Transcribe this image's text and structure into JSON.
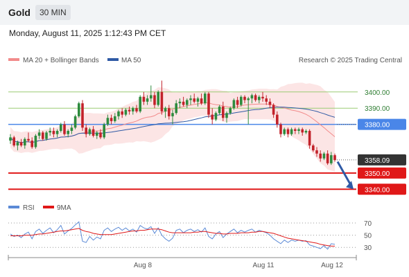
{
  "header": {
    "title": "Gold",
    "timeframe": "30 MIN"
  },
  "datetime": "Monday, August 11, 2025 1:12:43 PM CET",
  "credit": "Research © 2025 Trading Central",
  "colors": {
    "up": "#2e8b3e",
    "down": "#c2222a",
    "bb_band": "#fbdcdc",
    "ma20": "#f28b8b",
    "ma50": "#2f5aa5",
    "resistance": "#9acb73",
    "pivot": "#4a86e8",
    "support": "#e01818",
    "price_tag": "#333333",
    "arrow": "#2f5aa5",
    "rsi": "#5b8ad6",
    "rsi_ma": "#e01818"
  },
  "chart_data": [
    {
      "type": "candlestick",
      "title": "Gold",
      "timeframe": "30 MIN",
      "legend": [
        {
          "name": "MA 20 + Bollinger Bands",
          "color": "#f28b8b"
        },
        {
          "name": "MA 50",
          "color": "#2f5aa5"
        }
      ],
      "legend_position": "top-left",
      "x_tick_labels": [
        "Aug 8",
        "Aug 11",
        "Aug 12"
      ],
      "ylim": [
        3335,
        3414
      ],
      "levels": [
        {
          "label": "3400.00",
          "value": 3400,
          "kind": "resistance"
        },
        {
          "label": "3390.00",
          "value": 3390,
          "kind": "resistance"
        },
        {
          "label": "3380.00",
          "value": 3380,
          "kind": "pivot"
        },
        {
          "label": "3350.00",
          "value": 3350,
          "kind": "support"
        },
        {
          "label": "3340.00",
          "value": 3340,
          "kind": "support"
        }
      ],
      "last_price": {
        "label": "3358.09",
        "value": 3358.09
      },
      "forecast_arrow": {
        "from": 3357,
        "to": 3340
      },
      "candles": [
        [
          3370,
          3374,
          3368,
          3372
        ],
        [
          3372,
          3373,
          3366,
          3367
        ],
        [
          3367,
          3370,
          3364,
          3369
        ],
        [
          3369,
          3371,
          3366,
          3367
        ],
        [
          3367,
          3372,
          3365,
          3371
        ],
        [
          3371,
          3375,
          3369,
          3370
        ],
        [
          3370,
          3372,
          3365,
          3366
        ],
        [
          3366,
          3374,
          3365,
          3373
        ],
        [
          3373,
          3377,
          3371,
          3375
        ],
        [
          3375,
          3376,
          3370,
          3371
        ],
        [
          3371,
          3376,
          3370,
          3375
        ],
        [
          3375,
          3378,
          3373,
          3376
        ],
        [
          3376,
          3378,
          3372,
          3374
        ],
        [
          3374,
          3377,
          3372,
          3376
        ],
        [
          3376,
          3381,
          3375,
          3380
        ],
        [
          3380,
          3382,
          3373,
          3374
        ],
        [
          3374,
          3377,
          3372,
          3376
        ],
        [
          3376,
          3380,
          3374,
          3378
        ],
        [
          3378,
          3386,
          3377,
          3385
        ],
        [
          3385,
          3394,
          3384,
          3393
        ],
        [
          3393,
          3395,
          3376,
          3378
        ],
        [
          3378,
          3380,
          3372,
          3374
        ],
        [
          3374,
          3378,
          3373,
          3377
        ],
        [
          3377,
          3379,
          3372,
          3373
        ],
        [
          3373,
          3376,
          3371,
          3375
        ],
        [
          3375,
          3377,
          3371,
          3372
        ],
        [
          3372,
          3381,
          3371,
          3380
        ],
        [
          3380,
          3386,
          3379,
          3384
        ],
        [
          3384,
          3386,
          3380,
          3382
        ],
        [
          3382,
          3387,
          3381,
          3385
        ],
        [
          3385,
          3389,
          3383,
          3388
        ],
        [
          3388,
          3390,
          3384,
          3386
        ],
        [
          3386,
          3390,
          3385,
          3389
        ],
        [
          3389,
          3391,
          3386,
          3388
        ],
        [
          3388,
          3391,
          3386,
          3390
        ],
        [
          3390,
          3392,
          3387,
          3388
        ],
        [
          3388,
          3398,
          3387,
          3397
        ],
        [
          3397,
          3400,
          3392,
          3394
        ],
        [
          3394,
          3398,
          3392,
          3396
        ],
        [
          3396,
          3404,
          3394,
          3398
        ],
        [
          3398,
          3400,
          3390,
          3392
        ],
        [
          3392,
          3401,
          3391,
          3400
        ],
        [
          3400,
          3407,
          3386,
          3388
        ],
        [
          3388,
          3391,
          3384,
          3390
        ],
        [
          3390,
          3392,
          3383,
          3385
        ],
        [
          3385,
          3389,
          3380,
          3387
        ],
        [
          3387,
          3395,
          3386,
          3393
        ],
        [
          3393,
          3396,
          3390,
          3394
        ],
        [
          3394,
          3397,
          3391,
          3392
        ],
        [
          3392,
          3396,
          3390,
          3395
        ],
        [
          3395,
          3398,
          3392,
          3396
        ],
        [
          3396,
          3399,
          3393,
          3394
        ],
        [
          3394,
          3397,
          3391,
          3396
        ],
        [
          3396,
          3399,
          3392,
          3393
        ],
        [
          3393,
          3400,
          3392,
          3399
        ],
        [
          3399,
          3400,
          3384,
          3386
        ],
        [
          3386,
          3390,
          3380,
          3383
        ],
        [
          3383,
          3388,
          3382,
          3387
        ],
        [
          3387,
          3392,
          3386,
          3391
        ],
        [
          3391,
          3394,
          3382,
          3384
        ],
        [
          3384,
          3388,
          3381,
          3387
        ],
        [
          3387,
          3391,
          3386,
          3390
        ],
        [
          3390,
          3396,
          3389,
          3395
        ],
        [
          3395,
          3397,
          3390,
          3392
        ],
        [
          3392,
          3398,
          3391,
          3397
        ],
        [
          3397,
          3398,
          3393,
          3395
        ],
        [
          3395,
          3397,
          3380,
          3396
        ],
        [
          3396,
          3399,
          3393,
          3398
        ],
        [
          3398,
          3399,
          3394,
          3395
        ],
        [
          3395,
          3398,
          3393,
          3397
        ],
        [
          3397,
          3400,
          3394,
          3396
        ],
        [
          3396,
          3398,
          3392,
          3394
        ],
        [
          3394,
          3396,
          3390,
          3392
        ],
        [
          3392,
          3393,
          3384,
          3386
        ],
        [
          3386,
          3388,
          3378,
          3380
        ],
        [
          3380,
          3381,
          3372,
          3374
        ],
        [
          3374,
          3378,
          3373,
          3377
        ],
        [
          3377,
          3378,
          3372,
          3374
        ],
        [
          3374,
          3378,
          3373,
          3377
        ],
        [
          3377,
          3378,
          3374,
          3376
        ],
        [
          3376,
          3378,
          3374,
          3377
        ],
        [
          3377,
          3378,
          3373,
          3375
        ],
        [
          3375,
          3377,
          3374,
          3376
        ],
        [
          3376,
          3377,
          3365,
          3367
        ],
        [
          3367,
          3368,
          3363,
          3364
        ],
        [
          3364,
          3366,
          3360,
          3362
        ],
        [
          3362,
          3364,
          3357,
          3359
        ],
        [
          3359,
          3363,
          3358,
          3362
        ],
        [
          3362,
          3364,
          3355,
          3356
        ],
        [
          3356,
          3363,
          3355,
          3361
        ],
        [
          3361,
          3362,
          3357,
          3358
        ]
      ]
    },
    {
      "type": "line",
      "title": "RSI",
      "legend": [
        {
          "name": "RSI",
          "color": "#5b8ad6"
        },
        {
          "name": "9MA",
          "color": "#e01818"
        }
      ],
      "y_tick_labels": [
        "70",
        "50",
        "30"
      ],
      "ylim": [
        20,
        78
      ],
      "series": [
        {
          "name": "RSI",
          "values": [
            52,
            48,
            50,
            46,
            52,
            55,
            44,
            56,
            60,
            53,
            58,
            62,
            54,
            59,
            66,
            52,
            57,
            61,
            67,
            72,
            40,
            38,
            48,
            42,
            47,
            44,
            58,
            62,
            56,
            60,
            63,
            58,
            62,
            57,
            60,
            55,
            66,
            62,
            60,
            64,
            53,
            62,
            50,
            44,
            40,
            45,
            58,
            60,
            54,
            58,
            60,
            56,
            59,
            55,
            62,
            48,
            44,
            52,
            56,
            46,
            52,
            56,
            60,
            54,
            58,
            55,
            58,
            60,
            55,
            58,
            56,
            54,
            50,
            44,
            40,
            36,
            42,
            38,
            42,
            40,
            42,
            40,
            41,
            34,
            32,
            30,
            28,
            33,
            27,
            36,
            35
          ]
        },
        {
          "name": "9MA",
          "values": [
            49,
            49,
            49,
            49,
            50,
            50,
            50,
            51,
            52,
            52,
            53,
            54,
            55,
            56,
            57,
            57,
            58,
            59,
            60,
            61,
            58,
            56,
            55,
            53,
            52,
            51,
            51,
            51,
            51,
            52,
            53,
            54,
            55,
            56,
            57,
            57,
            58,
            58,
            59,
            60,
            60,
            60,
            59,
            57,
            55,
            54,
            54,
            54,
            54,
            54,
            54,
            55,
            55,
            56,
            56,
            55,
            54,
            53,
            53,
            52,
            52,
            53,
            53,
            53,
            54,
            54,
            54,
            55,
            55,
            56,
            56,
            55,
            54,
            53,
            51,
            49,
            47,
            45,
            44,
            43,
            42,
            41,
            40,
            39,
            38,
            37,
            35,
            34,
            33,
            32,
            32
          ]
        }
      ]
    }
  ]
}
